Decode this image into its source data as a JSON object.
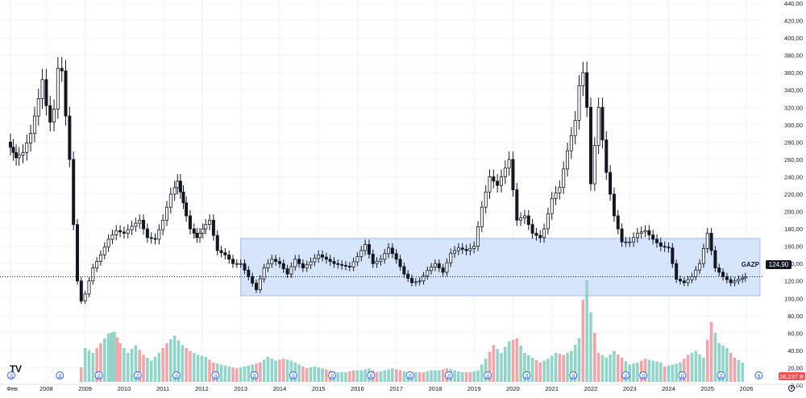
{
  "ticker": "GAZP",
  "last_price": "124,90",
  "volume_label": "26,237 B",
  "first_x_label": "Фев",
  "event_marker_letter": "Д",
  "dividend_marker": "$",
  "settings_icon": "gear-icon",
  "logo_icon": "tradingview-logo",
  "colors": {
    "up": "#26a69a",
    "down": "#ef5350",
    "up_volume": "#8fd5c8",
    "down_volume": "#f4a4a8",
    "candle": "#131722",
    "range_box": "#c9dcfb",
    "last_price_badge": "#131722",
    "volume_badge": "#ef5350",
    "grid": "#f0f3fa",
    "axis_text": "#131722"
  },
  "chart_data": {
    "type": "candlestick",
    "title": "",
    "xlabel": "",
    "ylabel": "",
    "grid": true,
    "legend": "none",
    "x_axis_labels": [
      "Фев",
      "2008",
      "2009",
      "2010",
      "2011",
      "2012",
      "2013",
      "2014",
      "2015",
      "2016",
      "2017",
      "2018",
      "2019",
      "2020",
      "2021",
      "2022",
      "2023",
      "2024",
      "2025",
      "2026"
    ],
    "x_axis_years": [
      2007.08,
      2008.0,
      2009.0,
      2010.0,
      2011.0,
      2012.0,
      2013.0,
      2014.0,
      2015.0,
      2016.0,
      2017.0,
      2018.0,
      2019.0,
      2020.0,
      2021.0,
      2022.0,
      2023.0,
      2024.0,
      2025.0,
      2026.0
    ],
    "y_axis_labels": [
      "440,00",
      "420,00",
      "400,00",
      "380,00",
      "360,00",
      "340,00",
      "320,00",
      "300,00",
      "280,00",
      "260,00",
      "240,00",
      "220,00",
      "200,00",
      "180,00",
      "160,00",
      "140,00",
      "120,00",
      "100,00",
      "80,00",
      "60,00",
      "40,00",
      "20,00",
      "0,00"
    ],
    "y_axis_values": [
      440,
      420,
      400,
      380,
      360,
      340,
      320,
      300,
      280,
      260,
      240,
      220,
      200,
      180,
      160,
      140,
      120,
      100,
      80,
      60,
      40,
      20,
      0
    ],
    "ylim": [
      0,
      440
    ],
    "highlight_range": {
      "x_start": 2013.0,
      "x_end": 2026.35,
      "y_low": 103,
      "y_high": 169
    },
    "price_points": [
      [
        2007.08,
        280
      ],
      [
        2007.3,
        262
      ],
      [
        2007.5,
        268
      ],
      [
        2007.7,
        290
      ],
      [
        2007.9,
        330
      ],
      [
        2008.0,
        352
      ],
      [
        2008.1,
        322
      ],
      [
        2008.2,
        303
      ],
      [
        2008.3,
        318
      ],
      [
        2008.4,
        365
      ],
      [
        2008.5,
        362
      ],
      [
        2008.6,
        310
      ],
      [
        2008.7,
        260
      ],
      [
        2008.8,
        185
      ],
      [
        2008.9,
        120
      ],
      [
        2009.0,
        97
      ],
      [
        2009.1,
        105
      ],
      [
        2009.3,
        135
      ],
      [
        2009.5,
        150
      ],
      [
        2009.7,
        168
      ],
      [
        2009.9,
        178
      ],
      [
        2010.1,
        175
      ],
      [
        2010.3,
        183
      ],
      [
        2010.5,
        190
      ],
      [
        2010.7,
        170
      ],
      [
        2010.9,
        168
      ],
      [
        2011.1,
        190
      ],
      [
        2011.3,
        220
      ],
      [
        2011.45,
        235
      ],
      [
        2011.6,
        210
      ],
      [
        2011.8,
        180
      ],
      [
        2011.95,
        170
      ],
      [
        2012.1,
        180
      ],
      [
        2012.3,
        190
      ],
      [
        2012.5,
        155
      ],
      [
        2012.7,
        150
      ],
      [
        2012.9,
        140
      ],
      [
        2013.1,
        140
      ],
      [
        2013.3,
        125
      ],
      [
        2013.5,
        110
      ],
      [
        2013.7,
        135
      ],
      [
        2013.9,
        145
      ],
      [
        2014.1,
        140
      ],
      [
        2014.3,
        128
      ],
      [
        2014.5,
        145
      ],
      [
        2014.7,
        135
      ],
      [
        2014.9,
        142
      ],
      [
        2015.1,
        150
      ],
      [
        2015.3,
        145
      ],
      [
        2015.5,
        140
      ],
      [
        2015.7,
        138
      ],
      [
        2015.9,
        136
      ],
      [
        2016.1,
        148
      ],
      [
        2016.3,
        162
      ],
      [
        2016.5,
        140
      ],
      [
        2016.7,
        145
      ],
      [
        2016.9,
        158
      ],
      [
        2017.1,
        145
      ],
      [
        2017.3,
        128
      ],
      [
        2017.5,
        118
      ],
      [
        2017.7,
        120
      ],
      [
        2017.9,
        132
      ],
      [
        2018.1,
        140
      ],
      [
        2018.3,
        130
      ],
      [
        2018.5,
        152
      ],
      [
        2018.7,
        158
      ],
      [
        2018.9,
        155
      ],
      [
        2019.1,
        160
      ],
      [
        2019.3,
        205
      ],
      [
        2019.5,
        240
      ],
      [
        2019.7,
        230
      ],
      [
        2019.9,
        250
      ],
      [
        2020.0,
        260
      ],
      [
        2020.2,
        190
      ],
      [
        2020.4,
        195
      ],
      [
        2020.6,
        175
      ],
      [
        2020.8,
        170
      ],
      [
        2020.9,
        180
      ],
      [
        2021.1,
        215
      ],
      [
        2021.3,
        228
      ],
      [
        2021.5,
        270
      ],
      [
        2021.7,
        305
      ],
      [
        2021.8,
        345
      ],
      [
        2021.9,
        360
      ],
      [
        2022.0,
        320
      ],
      [
        2022.1,
        232
      ],
      [
        2022.3,
        320
      ],
      [
        2022.5,
        245
      ],
      [
        2022.7,
        195
      ],
      [
        2022.9,
        165
      ],
      [
        2023.1,
        165
      ],
      [
        2023.3,
        175
      ],
      [
        2023.5,
        178
      ],
      [
        2023.7,
        168
      ],
      [
        2023.9,
        160
      ],
      [
        2024.1,
        158
      ],
      [
        2024.3,
        122
      ],
      [
        2024.5,
        118
      ],
      [
        2024.7,
        125
      ],
      [
        2024.9,
        140
      ],
      [
        2025.1,
        175
      ],
      [
        2025.3,
        135
      ],
      [
        2025.5,
        125
      ],
      [
        2025.7,
        118
      ],
      [
        2025.9,
        122
      ],
      [
        2026.05,
        124.9
      ]
    ],
    "volume_points": [
      [
        2008.9,
        15
      ],
      [
        2009.0,
        35
      ],
      [
        2009.2,
        30
      ],
      [
        2009.4,
        40
      ],
      [
        2009.6,
        50
      ],
      [
        2009.75,
        52
      ],
      [
        2009.9,
        40
      ],
      [
        2010.1,
        30
      ],
      [
        2010.3,
        38
      ],
      [
        2010.5,
        28
      ],
      [
        2010.7,
        22
      ],
      [
        2010.9,
        30
      ],
      [
        2011.1,
        40
      ],
      [
        2011.3,
        48
      ],
      [
        2011.5,
        38
      ],
      [
        2011.7,
        32
      ],
      [
        2011.9,
        28
      ],
      [
        2012.1,
        26
      ],
      [
        2012.3,
        20
      ],
      [
        2012.5,
        18
      ],
      [
        2012.7,
        16
      ],
      [
        2012.9,
        14
      ],
      [
        2013.1,
        16
      ],
      [
        2013.3,
        18
      ],
      [
        2013.5,
        20
      ],
      [
        2013.7,
        26
      ],
      [
        2013.9,
        22
      ],
      [
        2014.1,
        24
      ],
      [
        2014.3,
        22
      ],
      [
        2014.5,
        18
      ],
      [
        2014.7,
        14
      ],
      [
        2014.9,
        16
      ],
      [
        2015.1,
        14
      ],
      [
        2015.3,
        12
      ],
      [
        2015.5,
        10
      ],
      [
        2015.7,
        10
      ],
      [
        2015.9,
        12
      ],
      [
        2016.1,
        12
      ],
      [
        2016.3,
        14
      ],
      [
        2016.5,
        10
      ],
      [
        2016.7,
        12
      ],
      [
        2016.9,
        14
      ],
      [
        2017.1,
        12
      ],
      [
        2017.3,
        10
      ],
      [
        2017.5,
        10
      ],
      [
        2017.7,
        10
      ],
      [
        2017.9,
        12
      ],
      [
        2018.1,
        12
      ],
      [
        2018.3,
        14
      ],
      [
        2018.5,
        12
      ],
      [
        2018.7,
        10
      ],
      [
        2018.9,
        10
      ],
      [
        2019.1,
        12
      ],
      [
        2019.3,
        24
      ],
      [
        2019.5,
        38
      ],
      [
        2019.7,
        30
      ],
      [
        2019.9,
        42
      ],
      [
        2020.1,
        45
      ],
      [
        2020.3,
        30
      ],
      [
        2020.5,
        25
      ],
      [
        2020.7,
        20
      ],
      [
        2020.9,
        24
      ],
      [
        2021.1,
        30
      ],
      [
        2021.3,
        28
      ],
      [
        2021.5,
        32
      ],
      [
        2021.7,
        45
      ],
      [
        2021.8,
        85
      ],
      [
        2021.9,
        105
      ],
      [
        2022.0,
        72
      ],
      [
        2022.2,
        30
      ],
      [
        2022.4,
        25
      ],
      [
        2022.6,
        32
      ],
      [
        2022.8,
        25
      ],
      [
        2023.0,
        18
      ],
      [
        2023.2,
        20
      ],
      [
        2023.4,
        24
      ],
      [
        2023.6,
        22
      ],
      [
        2023.8,
        20
      ],
      [
        2023.9,
        16
      ],
      [
        2024.1,
        18
      ],
      [
        2024.3,
        20
      ],
      [
        2024.5,
        28
      ],
      [
        2024.7,
        32
      ],
      [
        2024.9,
        25
      ],
      [
        2025.1,
        62
      ],
      [
        2025.3,
        40
      ],
      [
        2025.5,
        35
      ],
      [
        2025.7,
        25
      ],
      [
        2025.9,
        20
      ],
      [
        2026.05,
        6
      ]
    ],
    "volume_scale_labels": [
      "100,00",
      "80,00",
      "60,00",
      "40,00",
      "20,00"
    ],
    "volume_scale_values": [
      100,
      80,
      60,
      40,
      20
    ],
    "event_marker_years": [
      2007.1,
      2008.35,
      2009.35,
      2010.35,
      2011.35,
      2012.35,
      2013.35,
      2014.35,
      2015.35,
      2016.35,
      2017.35,
      2018.35,
      2019.35,
      2020.35,
      2021.55,
      2022.9,
      2023.35,
      2024.35,
      2025.35
    ]
  }
}
